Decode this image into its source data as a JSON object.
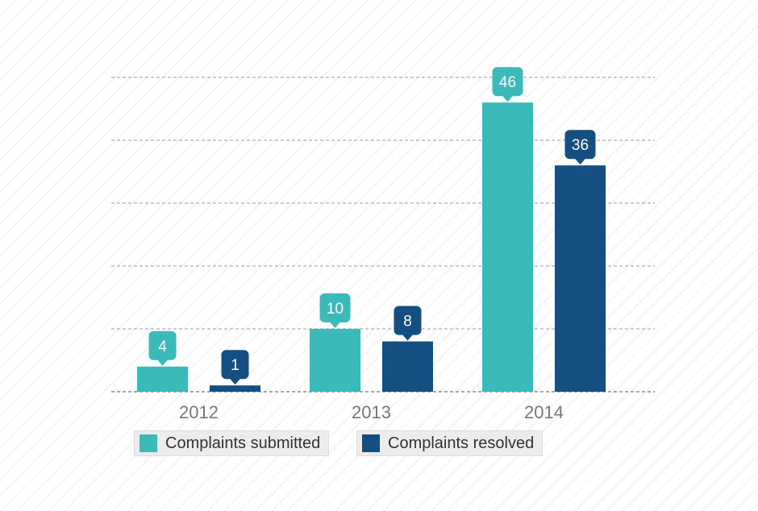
{
  "chart_data": {
    "type": "bar",
    "categories": [
      "2012",
      "2013",
      "2014"
    ],
    "series": [
      {
        "name": "Complaints submitted",
        "values": [
          4,
          10,
          46
        ],
        "color": "#3cb9b9"
      },
      {
        "name": "Complaints resolved",
        "values": [
          1,
          8,
          36
        ],
        "color": "#154f82"
      }
    ],
    "ylim": [
      0,
      50
    ],
    "grid": "dashed horizontal",
    "legend_position": "bottom",
    "data_labels": "callout above each bar"
  }
}
